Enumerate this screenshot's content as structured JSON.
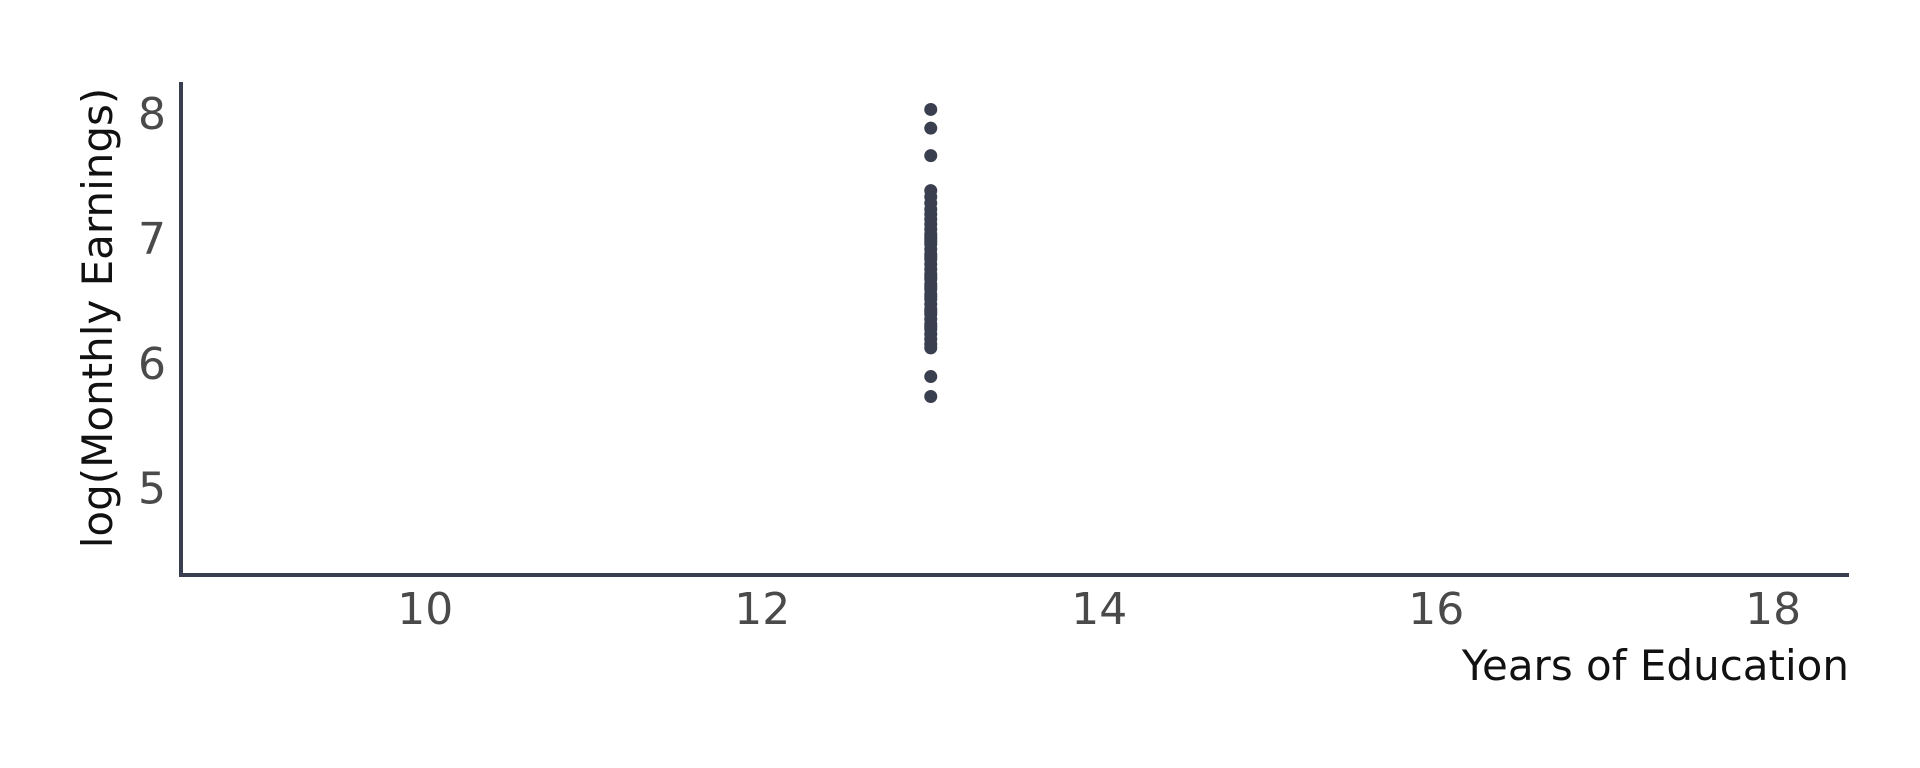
{
  "chart_data": {
    "type": "scatter",
    "xlabel": "Years of Education",
    "ylabel": "log(Monthly Earnings)",
    "xlim": [
      8.55,
      18.45
    ],
    "ylim": [
      4.3,
      8.25
    ],
    "xticks": [
      10,
      12,
      14,
      16,
      18
    ],
    "yticks": [
      5,
      6,
      7,
      8
    ],
    "grid": false,
    "legend": "none",
    "point_color": "#3a3f50",
    "axis_color": "#3a3f50",
    "series": [
      {
        "x": [
          13,
          13,
          13,
          13,
          13,
          13,
          13,
          13,
          13,
          13,
          13,
          13,
          13,
          13,
          13,
          13,
          13,
          13,
          13,
          13,
          13,
          13,
          13,
          13,
          13,
          13,
          13,
          13,
          13,
          13,
          13,
          13,
          13,
          13,
          13,
          13,
          13,
          13,
          13,
          13,
          13,
          13,
          13,
          13,
          13
        ],
        "y": [
          8.03,
          7.88,
          7.66,
          7.38,
          7.33,
          7.28,
          7.23,
          7.19,
          7.15,
          7.11,
          7.07,
          7.03,
          6.99,
          6.95,
          6.91,
          6.87,
          6.83,
          6.79,
          6.75,
          6.71,
          6.67,
          6.63,
          6.59,
          6.55,
          6.51,
          6.47,
          6.43,
          6.39,
          6.35,
          6.31,
          6.27,
          6.23,
          6.19,
          6.15,
          6.12,
          5.89,
          5.73,
          7.01,
          6.85,
          6.69,
          6.53,
          6.41,
          6.29,
          6.97,
          6.61
        ]
      }
    ]
  }
}
